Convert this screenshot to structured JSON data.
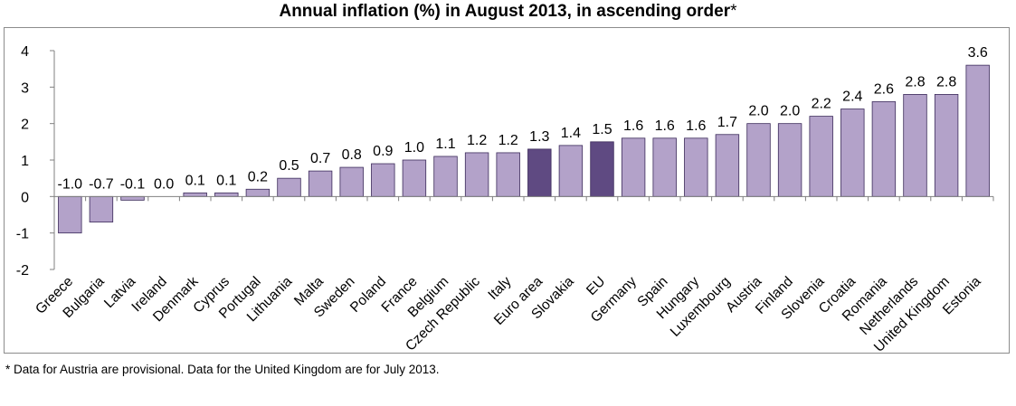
{
  "title": "Annual inflation (%) in August 2013, in ascending order",
  "title_marker": "*",
  "footnote": "* Data for Austria are provisional. Data for the United Kingdom are for July 2013.",
  "colors": {
    "bar": "#b3a2c9",
    "highlight": "#5f4a82",
    "bar_border": "#3b2a5a",
    "axis": "#808080"
  },
  "chart_data": {
    "type": "bar",
    "title": "Annual inflation (%) in August 2013, in ascending order*",
    "xlabel": "",
    "ylabel": "",
    "ylim": [
      -2,
      4
    ],
    "yticks": [
      4,
      3,
      2,
      1,
      0,
      -1,
      -2
    ],
    "grid": false,
    "legend": "none",
    "categories": [
      "Greece",
      "Bulgaria",
      "Latvia",
      "Ireland",
      "Denmark",
      "Cyprus",
      "Portugal",
      "Lithuania",
      "Malta",
      "Sweden",
      "Poland",
      "France",
      "Belgium",
      "Czech Republic",
      "Italy",
      "Euro area",
      "Slovakia",
      "EU",
      "Germany",
      "Spain",
      "Hungary",
      "Luxembourg",
      "Austria",
      "Finland",
      "Slovenia",
      "Croatia",
      "Romania",
      "Netherlands",
      "United Kingdom",
      "Estonia"
    ],
    "values": [
      -1.0,
      -0.7,
      -0.1,
      0.0,
      0.1,
      0.1,
      0.2,
      0.5,
      0.7,
      0.8,
      0.9,
      1.0,
      1.1,
      1.2,
      1.2,
      1.3,
      1.4,
      1.5,
      1.6,
      1.6,
      1.6,
      1.7,
      2.0,
      2.0,
      2.2,
      2.4,
      2.6,
      2.8,
      2.8,
      3.6
    ],
    "value_labels": [
      "-1.0",
      "-0.7",
      "-0.1",
      "0.0",
      "0.1",
      "0.1",
      "0.2",
      "0.5",
      "0.7",
      "0.8",
      "0.9",
      "1.0",
      "1.1",
      "1.2",
      "1.2",
      "1.3",
      "1.4",
      "1.5",
      "1.6",
      "1.6",
      "1.6",
      "1.7",
      "2.0",
      "2.0",
      "2.2",
      "2.4",
      "2.6",
      "2.8",
      "2.8",
      "3.6"
    ],
    "highlighted": [
      "Euro area",
      "EU"
    ]
  }
}
